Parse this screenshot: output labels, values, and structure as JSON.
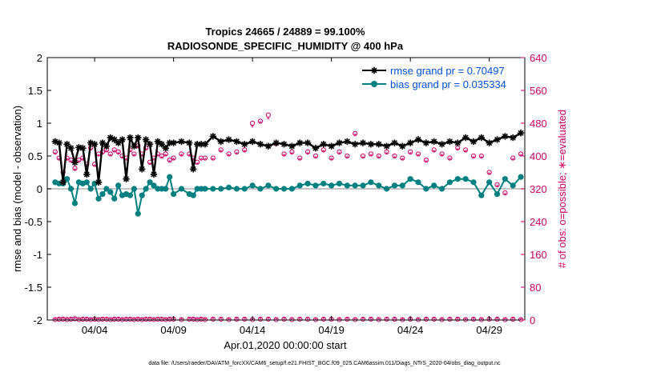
{
  "chart_data": {
    "type": "line",
    "title": "Tropics 24665 / 24889 = 99.100%",
    "subtitle": "RADIOSONDE_SPECIFIC_HUMIDITY @ 400 hPa",
    "xlabel": "Apr.01,2020 00:00:00 start",
    "ylabel": "rmse and bias (model - observation)",
    "y2label": "# of obs: o=possible; ∗=evaluated",
    "footer": "data file: /Users/raeder/DAI/ATM_forcXX/CAM6_setup/f.e21.FHIST_BGC.f09_025.CAM6assim.011/Diags_NTrS_2020-04/obs_diag_output.nc",
    "xlim": [
      1,
      31.25
    ],
    "ylim": [
      -2,
      2
    ],
    "y2lim": [
      0,
      640
    ],
    "x_ticks": [
      4,
      9,
      14,
      19,
      24,
      29
    ],
    "x_tick_labels": [
      "04/04",
      "04/09",
      "04/14",
      "04/19",
      "04/24",
      "04/29"
    ],
    "y_ticks": [
      -2,
      -1.5,
      -1,
      -0.5,
      0,
      0.5,
      1,
      1.5,
      2
    ],
    "y_tick_labels": [
      "-2",
      "-1.5",
      "-1",
      "-0.5",
      "0",
      "0.5",
      "1",
      "1.5",
      "2"
    ],
    "y2_ticks": [
      0,
      80,
      160,
      240,
      320,
      400,
      480,
      560,
      640
    ],
    "y2_tick_labels": [
      "0",
      "80",
      "160",
      "240",
      "320",
      "400",
      "480",
      "560",
      "640"
    ],
    "legend_position": "top-right",
    "colors": {
      "rmse": "#000000",
      "bias": "#008080",
      "legend_text": "#0050e0",
      "obs": "#cc0066",
      "zero_line": "#b0b0b0"
    },
    "x": [
      1.5,
      1.75,
      2.0,
      2.25,
      2.5,
      2.75,
      3.0,
      3.25,
      3.5,
      3.75,
      4.0,
      4.25,
      4.5,
      4.75,
      5.0,
      5.25,
      5.5,
      5.75,
      6.0,
      6.25,
      6.5,
      6.75,
      7.0,
      7.25,
      7.5,
      7.75,
      8.0,
      8.25,
      8.5,
      8.75,
      9.0,
      9.5,
      10.0,
      10.25,
      10.5,
      10.75,
      11.0,
      11.5,
      12.0,
      12.5,
      13.0,
      13.5,
      14.0,
      14.5,
      15.0,
      15.5,
      16.0,
      16.5,
      17.0,
      17.5,
      18.0,
      18.5,
      19.0,
      19.5,
      20.0,
      20.5,
      21.0,
      21.5,
      22.0,
      22.5,
      23.0,
      23.5,
      24.0,
      24.5,
      25.0,
      25.5,
      26.0,
      26.5,
      27.0,
      27.5,
      28.0,
      28.5,
      29.0,
      29.5,
      30.0,
      30.5,
      31.0
    ],
    "series": [
      {
        "name": "rmse grand pr = 0.70497",
        "values": [
          0.72,
          0.7,
          0.1,
          0.68,
          0.62,
          0.4,
          0.63,
          0.62,
          0.22,
          0.7,
          0.68,
          0.1,
          0.7,
          0.65,
          0.78,
          0.75,
          0.7,
          0.75,
          0.15,
          0.78,
          0.65,
          0.78,
          0.3,
          0.75,
          0.68,
          0.22,
          0.72,
          0.68,
          0.62,
          0.7,
          0.7,
          0.72,
          0.7,
          0.3,
          0.68,
          0.68,
          0.68,
          0.8,
          0.72,
          0.75,
          0.72,
          0.68,
          0.72,
          0.68,
          0.65,
          0.7,
          0.68,
          0.65,
          0.7,
          0.7,
          0.62,
          0.68,
          0.65,
          0.7,
          0.72,
          0.68,
          0.7,
          0.68,
          0.68,
          0.65,
          0.7,
          0.65,
          0.7,
          0.75,
          0.7,
          0.72,
          0.68,
          0.72,
          0.7,
          0.78,
          0.72,
          0.78,
          0.7,
          0.75,
          0.8,
          0.78,
          0.85
        ]
      },
      {
        "name": "bias grand pr = 0.035334",
        "values": [
          0.1,
          0.08,
          0.08,
          0.15,
          0.0,
          -0.22,
          0.1,
          0.08,
          0.1,
          0.0,
          0.08,
          -0.15,
          -0.08,
          0.0,
          -0.05,
          -0.15,
          0.05,
          -0.1,
          -0.08,
          -0.1,
          0.0,
          -0.38,
          -0.1,
          0.0,
          0.1,
          0.05,
          0.0,
          0.0,
          0.0,
          0.18,
          -0.08,
          0.0,
          -0.08,
          -0.1,
          0.0,
          0.0,
          0.0,
          0.0,
          0.0,
          0.02,
          0.0,
          0.0,
          0.05,
          0.0,
          0.05,
          0.0,
          0.0,
          0.0,
          0.05,
          0.08,
          0.05,
          0.08,
          0.05,
          0.08,
          0.05,
          0.05,
          0.05,
          0.1,
          0.05,
          0.0,
          0.05,
          0.05,
          0.15,
          0.1,
          0.0,
          0.05,
          0.0,
          0.1,
          0.15,
          0.15,
          0.1,
          -0.1,
          0.1,
          -0.08,
          0.15,
          0.05,
          0.18
        ]
      },
      {
        "name": "possible",
        "values": [
          410,
          395,
          360,
          395,
          390,
          370,
          390,
          395,
          380,
          420,
          380,
          405,
          410,
          415,
          405,
          415,
          410,
          400,
          395,
          415,
          405,
          425,
          405,
          420,
          385,
          395,
          405,
          400,
          405,
          390,
          395,
          405,
          405,
          395,
          385,
          395,
          395,
          395,
          415,
          405,
          410,
          415,
          480,
          485,
          500,
          430,
          405,
          410,
          395,
          410,
          400,
          415,
          395,
          410,
          400,
          455,
          400,
          405,
          400,
          410,
          400,
          395,
          410,
          405,
          390,
          415,
          405,
          395,
          420,
          415,
          400,
          400,
          360,
          330,
          310,
          395,
          405
        ]
      },
      {
        "name": "evaluated",
        "values": [
          405,
          390,
          355,
          390,
          385,
          365,
          385,
          390,
          375,
          415,
          375,
          400,
          405,
          410,
          400,
          410,
          405,
          395,
          390,
          410,
          400,
          420,
          400,
          415,
          380,
          390,
          400,
          395,
          400,
          385,
          390,
          400,
          400,
          390,
          380,
          390,
          390,
          390,
          410,
          400,
          405,
          410,
          470,
          480,
          490,
          425,
          400,
          405,
          390,
          405,
          395,
          410,
          390,
          405,
          395,
          450,
          395,
          400,
          395,
          405,
          395,
          390,
          405,
          400,
          385,
          410,
          400,
          390,
          415,
          410,
          395,
          395,
          355,
          325,
          305,
          390,
          400
        ]
      },
      {
        "name": "possible_low",
        "values": [
          1,
          2,
          2,
          1,
          2,
          3,
          1,
          2,
          2,
          1,
          2,
          1,
          2,
          2,
          1,
          2,
          2,
          1,
          2,
          2,
          1,
          2,
          1,
          2,
          2,
          1,
          2,
          2,
          1,
          2,
          2,
          1,
          2,
          2,
          1,
          2,
          1,
          2,
          2,
          1,
          2,
          2,
          1,
          2,
          2,
          1,
          2,
          1,
          2,
          2,
          1,
          2,
          2,
          1,
          2,
          1,
          2,
          2,
          1,
          2,
          2,
          1,
          2,
          1,
          2,
          2,
          1,
          2,
          2,
          1,
          2,
          1,
          2,
          2,
          1,
          2,
          1
        ]
      },
      {
        "name": "evaluated_low",
        "values": [
          1,
          2,
          2,
          1,
          2,
          3,
          1,
          2,
          2,
          1,
          2,
          1,
          2,
          2,
          1,
          2,
          2,
          1,
          2,
          2,
          1,
          2,
          1,
          2,
          2,
          1,
          2,
          2,
          1,
          2,
          2,
          1,
          2,
          2,
          1,
          2,
          1,
          2,
          2,
          1,
          2,
          2,
          1,
          2,
          2,
          1,
          2,
          1,
          2,
          2,
          1,
          2,
          2,
          1,
          2,
          1,
          2,
          2,
          1,
          2,
          2,
          1,
          2,
          1,
          2,
          2,
          1,
          2,
          2,
          1,
          2,
          1,
          2,
          2,
          1,
          2,
          1
        ]
      }
    ]
  }
}
